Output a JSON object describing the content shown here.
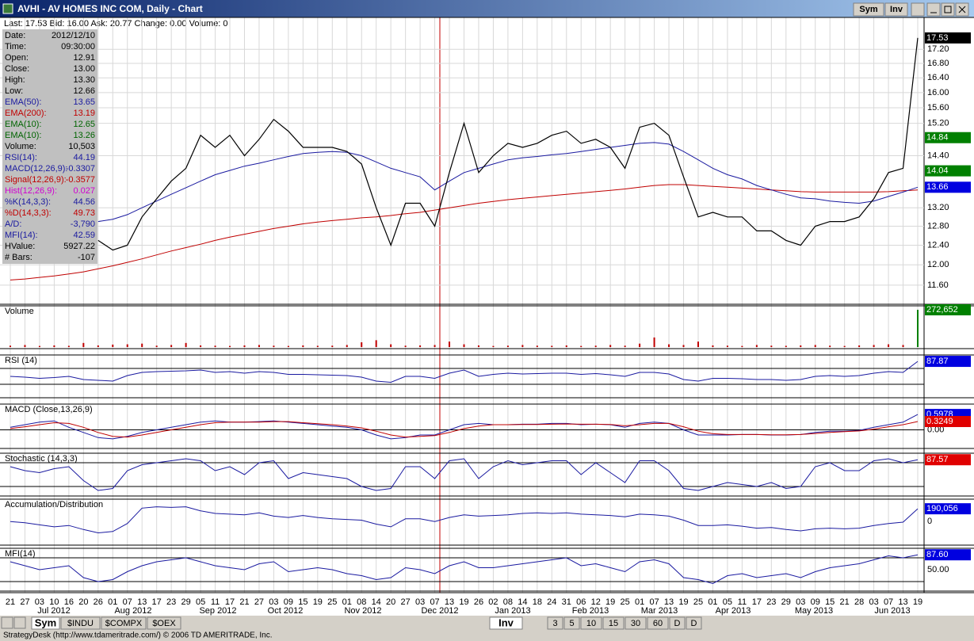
{
  "window": {
    "title": "AVHI - AV HOMES INC COM, Daily - Chart",
    "buttons": [
      "Sym",
      "Inv"
    ]
  },
  "quote_bar": "Last: 17.53  Bid: 16.00  Ask: 20.77  Change: 0.00  Volume: 0",
  "info_panel": [
    {
      "label": "Date:",
      "value": "2012/12/10",
      "color": "#000000"
    },
    {
      "label": "Time:",
      "value": "09:30:00",
      "color": "#000000"
    },
    {
      "label": "Open:",
      "value": "12.91",
      "color": "#000000"
    },
    {
      "label": "Close:",
      "value": "13.00",
      "color": "#000000"
    },
    {
      "label": "High:",
      "value": "13.30",
      "color": "#000000"
    },
    {
      "label": "Low:",
      "value": "12.66",
      "color": "#000000"
    },
    {
      "label": "EMA(50):",
      "value": "13.65",
      "color": "#1a1aa0"
    },
    {
      "label": "EMA(200):",
      "value": "13.19",
      "color": "#c00000"
    },
    {
      "label": "EMA(10):",
      "value": "12.65",
      "color": "#006400"
    },
    {
      "label": "EMA(10):",
      "value": "13.26",
      "color": "#006400"
    },
    {
      "label": "Volume:",
      "value": "10,503",
      "color": "#000000"
    },
    {
      "label": "RSI(14):",
      "value": "44.19",
      "color": "#1a1aa0"
    },
    {
      "label": "MACD(12,26,9):",
      "value": "-0.3307",
      "color": "#1a1aa0"
    },
    {
      "label": "Signal(12,26,9):",
      "value": "-0.3577",
      "color": "#c00000"
    },
    {
      "label": "Hist(12,26,9):",
      "value": "0.027",
      "color": "#d000d0"
    },
    {
      "label": "%K(14,3,3):",
      "value": "44.56",
      "color": "#1a1aa0"
    },
    {
      "label": "%D(14,3,3):",
      "value": "49.73",
      "color": "#c00000"
    },
    {
      "label": "A/D:",
      "value": "-3,790",
      "color": "#1a1aa0"
    },
    {
      "label": "MFI(14):",
      "value": "42.59",
      "color": "#1a1aa0"
    },
    {
      "label": "HValue:",
      "value": "5927.22",
      "color": "#000000"
    },
    {
      "label": "# Bars:",
      "value": "-107",
      "color": "#000000"
    }
  ],
  "chart_data": {
    "type": "stock",
    "days": [
      "21",
      "27",
      "03",
      "10",
      "16",
      "20",
      "26",
      "01",
      "07",
      "13",
      "17",
      "23",
      "29",
      "05",
      "11",
      "17",
      "21",
      "27",
      "03",
      "09",
      "15",
      "19",
      "25",
      "01",
      "08",
      "14",
      "20",
      "27",
      "03",
      "07",
      "13",
      "19",
      "26",
      "02",
      "08",
      "14",
      "18",
      "24",
      "31",
      "06",
      "12",
      "19",
      "25",
      "01",
      "07",
      "13",
      "19",
      "25",
      "01",
      "05",
      "11",
      "17",
      "23",
      "29",
      "03",
      "09",
      "15",
      "21",
      "28",
      "03",
      "07",
      "13",
      "19"
    ],
    "months": [
      "Jul 2012",
      "Aug 2012",
      "Sep 2012",
      "Oct 2012",
      "Nov 2012",
      "Dec 2012",
      "Jan 2013",
      "Feb 2013",
      "Mar 2013",
      "Apr 2013",
      "May 2013",
      "Jun 2013"
    ],
    "price": {
      "log": true,
      "ylim": [
        11.25,
        18.14
      ],
      "yticks": [
        {
          "value": 17.2,
          "label": "17.20"
        },
        {
          "value": 16.8,
          "label": "16.80"
        },
        {
          "value": 16.4,
          "label": "16.40"
        },
        {
          "value": 16,
          "label": "16.00"
        },
        {
          "value": 15.6,
          "label": "15.60"
        },
        {
          "value": 15.2,
          "label": "15.20"
        },
        {
          "value": 14.4,
          "label": "14.40"
        },
        {
          "value": 13.2,
          "label": "13.20"
        },
        {
          "value": 12.8,
          "label": "12.80"
        },
        {
          "value": 12.4,
          "label": "12.40"
        },
        {
          "value": 12,
          "label": "12.00"
        },
        {
          "value": 11.6,
          "label": "11.60"
        }
      ],
      "series": [
        {
          "color": "#c00000",
          "values": [
            11.7,
            11.72,
            11.75,
            11.78,
            11.82,
            11.86,
            11.92,
            11.98,
            12.05,
            12.12,
            12.2,
            12.28,
            12.35,
            12.42,
            12.5,
            12.57,
            12.63,
            12.69,
            12.75,
            12.8,
            12.85,
            12.89,
            12.92,
            12.95,
            12.98,
            13.0,
            13.03,
            13.07,
            13.1,
            13.15,
            13.2,
            13.25,
            13.3,
            13.34,
            13.38,
            13.41,
            13.44,
            13.47,
            13.5,
            13.53,
            13.56,
            13.59,
            13.62,
            13.66,
            13.7,
            13.72,
            13.72,
            13.7,
            13.68,
            13.66,
            13.64,
            13.62,
            13.6,
            13.58,
            13.56,
            13.55,
            13.55,
            13.55,
            13.55,
            13.55,
            13.56,
            13.58,
            13.6
          ]
        },
        {
          "color": "#1a1aa0",
          "values": [
            null,
            null,
            null,
            null,
            null,
            null,
            12.9,
            12.95,
            13.05,
            13.2,
            13.35,
            13.5,
            13.65,
            13.8,
            13.95,
            14.05,
            14.15,
            14.22,
            14.3,
            14.38,
            14.45,
            14.48,
            14.5,
            14.48,
            14.4,
            14.25,
            14.1,
            14.0,
            13.9,
            13.6,
            13.8,
            14.0,
            14.1,
            14.2,
            14.3,
            14.35,
            14.38,
            14.42,
            14.45,
            14.5,
            14.55,
            14.6,
            14.65,
            14.7,
            14.72,
            14.68,
            14.5,
            14.3,
            14.1,
            13.95,
            13.85,
            13.7,
            13.6,
            13.5,
            13.42,
            13.4,
            13.35,
            13.32,
            13.3,
            13.35,
            13.45,
            13.55,
            13.66
          ]
        },
        {
          "color": "#000000",
          "values": [
            null,
            null,
            null,
            null,
            null,
            null,
            12.5,
            12.3,
            12.4,
            13.0,
            13.4,
            13.8,
            14.1,
            14.9,
            14.6,
            14.9,
            14.4,
            14.8,
            15.3,
            15.0,
            14.6,
            14.6,
            14.6,
            14.5,
            14.2,
            13.2,
            12.4,
            13.3,
            13.3,
            12.8,
            14.0,
            15.2,
            14.0,
            14.4,
            14.7,
            14.6,
            14.7,
            14.9,
            15.0,
            14.7,
            14.8,
            14.6,
            14.1,
            15.1,
            15.2,
            14.9,
            13.9,
            13.0,
            13.1,
            13.0,
            13.0,
            12.7,
            12.7,
            12.5,
            12.4,
            12.8,
            12.9,
            12.9,
            13.0,
            13.4,
            14.0,
            14.1,
            17.53
          ]
        }
      ],
      "tags": [
        {
          "value": 17.53,
          "label": "17.53",
          "color": "#000000"
        },
        {
          "value": 14.84,
          "label": "14.84",
          "color": "#008000"
        },
        {
          "value": 14.04,
          "label": "14.04",
          "color": "#008000"
        },
        {
          "value": 13.66,
          "label": "13.66",
          "color": "#0000e0"
        }
      ]
    },
    "volume": {
      "label": "Volume",
      "ylim": [
        0,
        290000
      ],
      "color": "#c00000",
      "values": [
        10000,
        15000,
        8000,
        12000,
        9000,
        30000,
        12000,
        18000,
        20000,
        25000,
        10000,
        15000,
        30000,
        12000,
        10000,
        8000,
        12000,
        15000,
        10000,
        8000,
        12000,
        9000,
        10000,
        15000,
        35000,
        50000,
        20000,
        10000,
        12000,
        15000,
        40000,
        20000,
        12000,
        8000,
        10000,
        15000,
        10000,
        9000,
        12000,
        8000,
        10000,
        15000,
        10000,
        25000,
        70000,
        20000,
        15000,
        40000,
        12000,
        10000,
        8000,
        15000,
        10000,
        9000,
        12000,
        15000,
        10000,
        8000,
        12000,
        15000,
        20000,
        15000,
        272652
      ],
      "tag": {
        "value": 272652,
        "label": "272,652",
        "color": "#008000"
      }
    },
    "rsi": {
      "label": "RSI (14)",
      "ylim": [
        0,
        100
      ],
      "levels": [
        70,
        30
      ],
      "color": "#1a1aa0",
      "values": [
        50,
        48,
        45,
        47,
        50,
        42,
        40,
        38,
        52,
        60,
        62,
        63,
        64,
        66,
        60,
        62,
        58,
        62,
        60,
        55,
        55,
        54,
        53,
        52,
        48,
        38,
        35,
        50,
        50,
        45,
        58,
        66,
        50,
        55,
        58,
        56,
        57,
        58,
        58,
        55,
        57,
        54,
        50,
        60,
        60,
        56,
        42,
        38,
        45,
        45,
        44,
        42,
        42,
        40,
        42,
        50,
        52,
        50,
        52,
        58,
        62,
        60,
        87.87
      ],
      "tag": {
        "value": 87.87,
        "label": "87.87",
        "color": "#0000e0"
      }
    },
    "macd": {
      "label": "MACD (Close,13,26,9)",
      "ylim": [
        -0.66,
        0.94
      ],
      "levels": [
        0
      ],
      "zero_label": {
        "value": 0,
        "label": "0.00"
      },
      "series": [
        {
          "color": "#1a1aa0",
          "values": [
            0.1,
            0.2,
            0.3,
            0.35,
            0.1,
            -0.1,
            -0.3,
            -0.35,
            -0.25,
            -0.1,
            0.0,
            0.1,
            0.2,
            0.3,
            0.35,
            0.3,
            0.3,
            0.32,
            0.35,
            0.3,
            0.25,
            0.2,
            0.15,
            0.1,
            0.0,
            -0.2,
            -0.35,
            -0.3,
            -0.2,
            -0.2,
            0.0,
            0.2,
            0.25,
            0.2,
            0.2,
            0.22,
            0.22,
            0.25,
            0.25,
            0.2,
            0.22,
            0.2,
            0.1,
            0.25,
            0.3,
            0.25,
            0.0,
            -0.2,
            -0.2,
            -0.2,
            -0.18,
            -0.18,
            -0.2,
            -0.2,
            -0.18,
            -0.1,
            -0.05,
            -0.05,
            -0.02,
            0.1,
            0.2,
            0.3,
            0.5978
          ]
        },
        {
          "color": "#c00000",
          "values": [
            0.05,
            0.12,
            0.2,
            0.28,
            0.25,
            0.1,
            -0.1,
            -0.25,
            -0.28,
            -0.2,
            -0.1,
            0.0,
            0.1,
            0.2,
            0.28,
            0.3,
            0.3,
            0.3,
            0.32,
            0.32,
            0.28,
            0.24,
            0.2,
            0.15,
            0.08,
            -0.05,
            -0.2,
            -0.28,
            -0.25,
            -0.22,
            -0.1,
            0.05,
            0.15,
            0.2,
            0.2,
            0.21,
            0.21,
            0.22,
            0.23,
            0.22,
            0.22,
            0.21,
            0.16,
            0.2,
            0.25,
            0.25,
            0.12,
            -0.05,
            -0.15,
            -0.18,
            -0.18,
            -0.18,
            -0.19,
            -0.19,
            -0.18,
            -0.14,
            -0.1,
            -0.07,
            -0.04,
            0.03,
            0.12,
            0.2,
            0.3249
          ]
        }
      ],
      "tags": [
        {
          "value": 0.5978,
          "label": "0.5978",
          "color": "#0000e0"
        },
        {
          "value": 0.3249,
          "label": "0.3249",
          "color": "#e00000"
        }
      ]
    },
    "stochastic": {
      "label": "Stochastic (14,3,3)",
      "ylim": [
        0,
        100
      ],
      "levels": [
        80,
        20
      ],
      "color": "#1a1aa0",
      "values": [
        70,
        60,
        55,
        65,
        70,
        35,
        10,
        15,
        60,
        75,
        80,
        85,
        90,
        85,
        60,
        70,
        50,
        80,
        85,
        40,
        55,
        50,
        45,
        40,
        20,
        10,
        15,
        70,
        70,
        40,
        85,
        90,
        40,
        70,
        85,
        75,
        80,
        85,
        85,
        50,
        80,
        55,
        30,
        85,
        85,
        60,
        15,
        10,
        20,
        30,
        25,
        20,
        30,
        15,
        20,
        70,
        80,
        60,
        60,
        85,
        90,
        80,
        87.57
      ],
      "tag": {
        "value": 87.57,
        "label": "87.57",
        "color": "#e00000"
      }
    },
    "accumulation": {
      "label": "Accumulation/Distribution",
      "ylim": [
        -330000,
        310000
      ],
      "zero_label": {
        "value": 0,
        "label": "0"
      },
      "color": "#1a1aa0",
      "values": [
        0,
        -20000,
        -50000,
        -80000,
        -60000,
        -120000,
        -170000,
        -150000,
        -30000,
        200000,
        220000,
        210000,
        220000,
        160000,
        120000,
        110000,
        100000,
        130000,
        80000,
        60000,
        90000,
        60000,
        40000,
        30000,
        20000,
        -40000,
        -80000,
        40000,
        40000,
        0,
        60000,
        100000,
        80000,
        90000,
        100000,
        120000,
        130000,
        120000,
        130000,
        110000,
        100000,
        90000,
        70000,
        110000,
        100000,
        80000,
        20000,
        -60000,
        -60000,
        -50000,
        -70000,
        -100000,
        -90000,
        -120000,
        -140000,
        -110000,
        -100000,
        -110000,
        -100000,
        -60000,
        -30000,
        -10000,
        190056
      ],
      "tag": {
        "value": 190056,
        "label": "190,056",
        "color": "#0000e0"
      }
    },
    "mfi": {
      "label": "MFI(14)",
      "ylim": [
        0,
        100
      ],
      "levels": [
        80,
        20
      ],
      "color": "#1a1aa0",
      "ticks": [
        {
          "value": 50,
          "label": "50.00"
        }
      ],
      "values": [
        70,
        60,
        50,
        55,
        60,
        30,
        20,
        25,
        45,
        60,
        70,
        75,
        80,
        70,
        60,
        55,
        50,
        65,
        70,
        45,
        50,
        55,
        50,
        40,
        35,
        25,
        30,
        55,
        50,
        40,
        60,
        70,
        55,
        55,
        60,
        65,
        70,
        75,
        80,
        60,
        65,
        55,
        45,
        70,
        75,
        65,
        30,
        25,
        15,
        35,
        40,
        30,
        35,
        40,
        30,
        45,
        55,
        60,
        65,
        75,
        85,
        80,
        87.6
      ],
      "tag": {
        "value": 87.6,
        "label": "87.60",
        "color": "#0000e0"
      }
    }
  },
  "bottom_tabs": [
    "Sym",
    "$INDU",
    "$COMPX",
    "$OEX"
  ],
  "interval_tabs": [
    "Inv",
    "3",
    "5",
    "10",
    "15",
    "30",
    "60",
    "D",
    "D"
  ],
  "status_bar": "StrategyDesk (http://www.tdameritrade.com/) © 2006 TD AMERITRADE, Inc."
}
